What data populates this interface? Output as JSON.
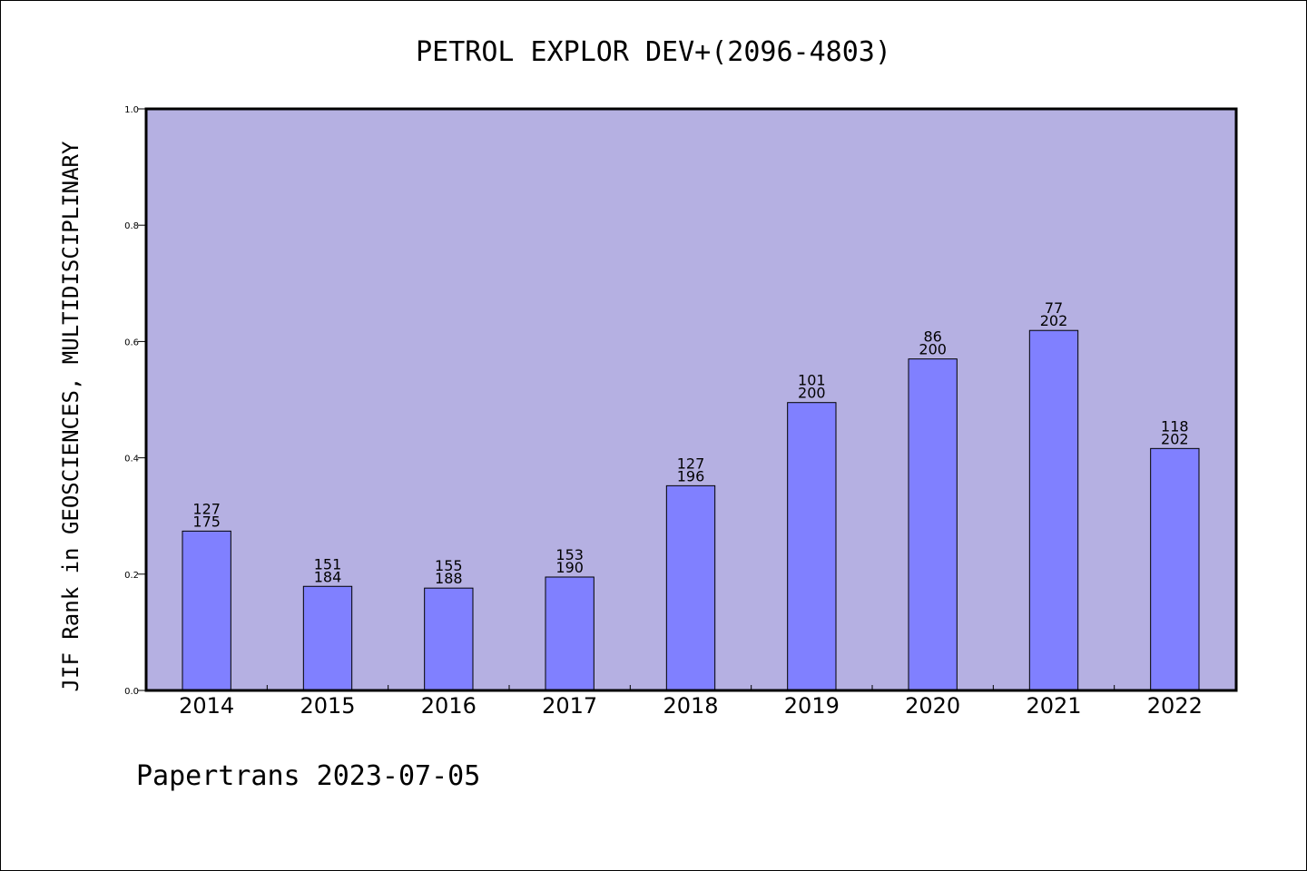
{
  "chart_data": {
    "type": "bar",
    "title": "PETROL EXPLOR DEV+(2096-4803)",
    "ylabel": "JIF Rank in GEOSCIENCES, MULTIDISCIPLINARY",
    "xlabel": "",
    "ylim": [
      0,
      1.0
    ],
    "yticks": [
      "0.0",
      "0.2",
      "0.4",
      "0.6",
      "0.8",
      "1.0"
    ],
    "categories": [
      "2014",
      "2015",
      "2016",
      "2017",
      "2018",
      "2019",
      "2020",
      "2021",
      "2022"
    ],
    "values": [
      0.274,
      0.179,
      0.176,
      0.195,
      0.352,
      0.495,
      0.57,
      0.619,
      0.416
    ],
    "rank_labels": [
      "127",
      "151",
      "155",
      "153",
      "127",
      "101",
      "86",
      "77",
      "118"
    ],
    "total_labels": [
      "175",
      "184",
      "188",
      "190",
      "196",
      "200",
      "200",
      "202",
      "202"
    ],
    "grid": false,
    "colors": {
      "plot_background": "#b5b0e2",
      "bar_fill": "#8080ff",
      "bar_stroke": "#000000"
    }
  },
  "footer": "Papertrans 2023-07-05"
}
